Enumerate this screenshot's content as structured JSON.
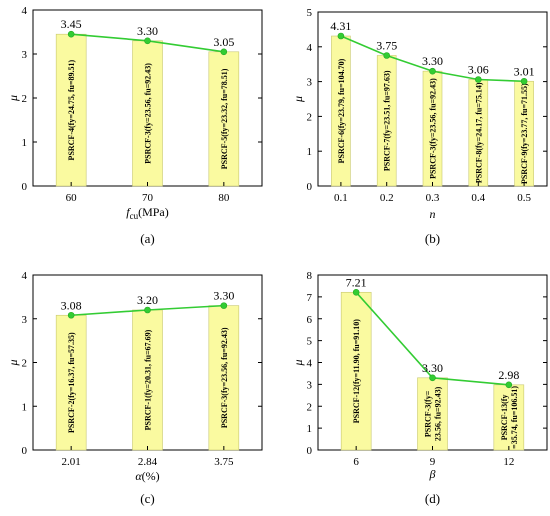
{
  "chart_data": [
    {
      "type": "bar",
      "panel_label": "(a)",
      "categories": [
        "60",
        "70",
        "80"
      ],
      "values": [
        3.45,
        3.3,
        3.05
      ],
      "value_labels": [
        "3.45",
        "3.30",
        "3.05"
      ],
      "bar_labels": [
        "PSRCF-4(fy=24.75, fu=89.51)",
        "PSRCF-3(fy=23.56, fu=92.43)",
        "PSRCF-5(fy=23.32, fu=78.51)"
      ],
      "xlabel": "fcu(MPa)",
      "xlabel_main": "f",
      "xlabel_sub": "cu",
      "xlabel_unit": "(MPa)",
      "ylabel": "μ",
      "ylim": [
        0,
        4
      ],
      "yticks": [
        "0",
        "1",
        "2",
        "3",
        "4"
      ],
      "line": true
    },
    {
      "type": "bar",
      "panel_label": "(b)",
      "categories": [
        "0.1",
        "0.2",
        "0.3",
        "0.4",
        "0.5"
      ],
      "values": [
        4.31,
        3.75,
        3.3,
        3.06,
        3.01
      ],
      "value_labels": [
        "4.31",
        "3.75",
        "3.30",
        "3.06",
        "3.01"
      ],
      "bar_labels": [
        "PSRCF-6(fy=23.79, fu=104.70)",
        "PSRCF-7(fy=23.51, fu=97.63)",
        "PSRCF-3(fy=23.56, fu=92.43)",
        "PSRCF-8(fy=24.17, fu=75.14)",
        "PSRCF-9(fy=23.77, fu=71.55)"
      ],
      "xlabel": "n",
      "ylabel": "μ",
      "ylim": [
        0,
        5
      ],
      "yticks": [
        "0",
        "1",
        "2",
        "3",
        "4",
        "5"
      ],
      "line": true
    },
    {
      "type": "bar",
      "panel_label": "(c)",
      "categories": [
        "2.01",
        "2.84",
        "3.75"
      ],
      "values": [
        3.08,
        3.2,
        3.3
      ],
      "value_labels": [
        "3.08",
        "3.20",
        "3.30"
      ],
      "bar_labels": [
        "PSRCF-2(fy=16.37, fu=57.35)",
        "PSRCF-1(fy=20.31, fu=67.69)",
        "PSRCF-3(fy=23.56, fu=92.43)"
      ],
      "xlabel": "α(%)",
      "xlabel_main": "α",
      "xlabel_unit": "(%)",
      "ylabel": "μ",
      "ylim": [
        0,
        4
      ],
      "yticks": [
        "0",
        "1",
        "2",
        "3",
        "4"
      ],
      "line": true
    },
    {
      "type": "bar",
      "panel_label": "(d)",
      "categories": [
        "6",
        "9",
        "12"
      ],
      "values": [
        7.21,
        3.3,
        2.98
      ],
      "value_labels": [
        "7.21",
        "3.30",
        "2.98"
      ],
      "bar_labels": [
        "PSRCF-12(fy=11.90, fu=91.10)",
        "PSRCF-3(fy=23.56, fu=92.43)",
        "PSRCF-13(fy=35.74, fu=106.51)"
      ],
      "bar_label_lines": [
        [
          "PSRCF-12(fy=11.90, fu=91.10)"
        ],
        [
          "PSRCF-3(fy=",
          "23.56, fu=92.43)"
        ],
        [
          "PSRCF-13(fy",
          "=35.74, fu=106.51)"
        ]
      ],
      "xlabel": "β",
      "ylabel": "μ",
      "ylim": [
        0,
        8
      ],
      "yticks": [
        "0",
        "1",
        "2",
        "3",
        "4",
        "5",
        "6",
        "7",
        "8"
      ],
      "line": true
    }
  ]
}
